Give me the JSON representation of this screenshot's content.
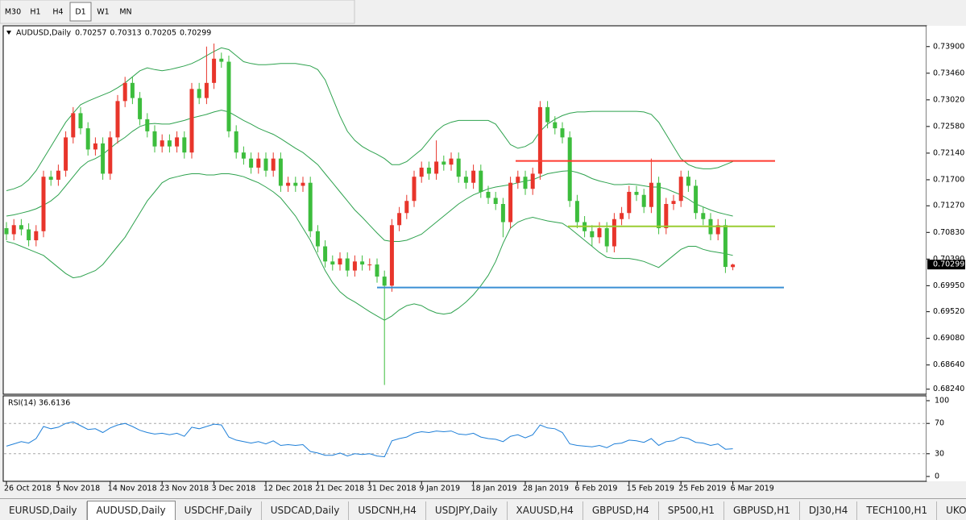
{
  "toolbar": {
    "timeframes": [
      {
        "label": "M30",
        "active": false
      },
      {
        "label": "H1",
        "active": false
      },
      {
        "label": "H4",
        "active": false
      },
      {
        "label": "D1",
        "active": true
      },
      {
        "label": "W1",
        "active": false
      },
      {
        "label": "MN",
        "active": false
      }
    ]
  },
  "tabs": [
    {
      "label": "EURUSD,Daily",
      "active": false
    },
    {
      "label": "AUDUSD,Daily",
      "active": true
    },
    {
      "label": "USDCHF,Daily",
      "active": false
    },
    {
      "label": "USDCAD,Daily",
      "active": false
    },
    {
      "label": "USDCNH,H4",
      "active": false
    },
    {
      "label": "USDJPY,Daily",
      "active": false
    },
    {
      "label": "XAUUSD,H4",
      "active": false
    },
    {
      "label": "GBPUSD,H4",
      "active": false
    },
    {
      "label": "SP500,H1",
      "active": false
    },
    {
      "label": "GBPUSD,H1",
      "active": false
    },
    {
      "label": "DJ30,H4",
      "active": false
    },
    {
      "label": "TECH100,H1",
      "active": false
    },
    {
      "label": "UKOil,",
      "active": false
    }
  ],
  "chart_data": [
    {
      "type": "candlestick",
      "title": "AUDUSD,Daily",
      "up_color": "#e8352b",
      "down_color": "#3dbd3d",
      "band_color": "#2ea24e",
      "categories": [
        "26 Oct 2018",
        null,
        null,
        null,
        null,
        null,
        null,
        "5 Nov 2018",
        null,
        null,
        null,
        null,
        null,
        null,
        "14 Nov 2018",
        null,
        null,
        null,
        null,
        null,
        null,
        "23 Nov 2018",
        null,
        null,
        null,
        null,
        null,
        null,
        "3 Dec 2018",
        null,
        null,
        null,
        null,
        null,
        null,
        "12 Dec 2018",
        null,
        null,
        null,
        null,
        null,
        null,
        "21 Dec 2018",
        null,
        null,
        null,
        null,
        null,
        null,
        "31 Dec 2018",
        null,
        null,
        null,
        null,
        null,
        null,
        "9 Jan 2019",
        null,
        null,
        null,
        null,
        null,
        null,
        "18 Jan 2019",
        null,
        null,
        null,
        null,
        null,
        null,
        "28 Jan 2019",
        null,
        null,
        null,
        null,
        null,
        null,
        "6 Feb 2019",
        null,
        null,
        null,
        null,
        null,
        null,
        "15 Feb 2019",
        null,
        null,
        null,
        null,
        null,
        null,
        "25 Feb 2019",
        null,
        null,
        null,
        null,
        null,
        null,
        "6 Mar 2019"
      ],
      "open": [
        0.709,
        0.708,
        0.7095,
        0.7088,
        0.707,
        0.7085,
        0.7175,
        0.717,
        0.7185,
        0.724,
        0.728,
        0.7255,
        0.722,
        0.723,
        0.718,
        0.724,
        0.73,
        0.733,
        0.7305,
        0.727,
        0.725,
        0.7225,
        0.7235,
        0.7225,
        0.724,
        0.7215,
        0.732,
        0.7305,
        0.733,
        0.737,
        0.7365,
        0.725,
        0.7215,
        0.7205,
        0.719,
        0.7205,
        0.7185,
        0.7205,
        0.716,
        0.7165,
        0.716,
        0.7165,
        0.7085,
        0.706,
        0.7035,
        0.703,
        0.704,
        0.702,
        0.7035,
        0.703,
        0.703,
        0.701,
        0.6995,
        0.7095,
        0.7115,
        0.7135,
        0.7175,
        0.719,
        0.718,
        0.72,
        0.7195,
        0.7205,
        0.7175,
        0.7165,
        0.7185,
        0.715,
        0.714,
        0.713,
        0.71,
        0.7165,
        0.7175,
        0.7155,
        0.718,
        0.729,
        0.7265,
        0.7255,
        0.724,
        0.7135,
        0.71,
        0.7085,
        0.7075,
        0.709,
        0.706,
        0.7105,
        0.7115,
        0.715,
        0.7145,
        0.7125,
        0.7165,
        0.709,
        0.713,
        0.7135,
        0.7175,
        0.716,
        0.7115,
        0.7105,
        0.708,
        0.7095,
        0.70257
      ],
      "high": [
        0.71,
        0.7105,
        0.7105,
        0.7098,
        0.7095,
        0.7185,
        0.7185,
        0.7195,
        0.725,
        0.729,
        0.729,
        0.7265,
        0.724,
        0.724,
        0.725,
        0.731,
        0.734,
        0.734,
        0.7315,
        0.728,
        0.726,
        0.7245,
        0.7245,
        0.725,
        0.725,
        0.733,
        0.733,
        0.739,
        0.7395,
        0.738,
        0.7375,
        0.726,
        0.7225,
        0.7215,
        0.7215,
        0.7215,
        0.7215,
        0.7215,
        0.7175,
        0.7175,
        0.7175,
        0.7175,
        0.7095,
        0.707,
        0.7045,
        0.705,
        0.705,
        0.7045,
        0.7045,
        0.704,
        0.704,
        0.702,
        0.7105,
        0.7125,
        0.7145,
        0.7185,
        0.72,
        0.72,
        0.7235,
        0.721,
        0.7215,
        0.7215,
        0.7185,
        0.7195,
        0.7195,
        0.716,
        0.715,
        0.714,
        0.7175,
        0.7185,
        0.7185,
        0.719,
        0.73,
        0.73,
        0.7275,
        0.7265,
        0.725,
        0.7145,
        0.711,
        0.7095,
        0.71,
        0.71,
        0.7115,
        0.7125,
        0.716,
        0.716,
        0.7155,
        0.7205,
        0.7175,
        0.714,
        0.7145,
        0.7185,
        0.7185,
        0.717,
        0.7125,
        0.7115,
        0.7105,
        0.7105,
        0.70313
      ],
      "low": [
        0.707,
        0.707,
        0.7078,
        0.706,
        0.706,
        0.7075,
        0.716,
        0.716,
        0.7175,
        0.723,
        0.7245,
        0.721,
        0.721,
        0.717,
        0.717,
        0.723,
        0.729,
        0.7295,
        0.726,
        0.724,
        0.7215,
        0.7215,
        0.7215,
        0.7215,
        0.7205,
        0.7205,
        0.7295,
        0.7295,
        0.732,
        0.7355,
        0.724,
        0.7205,
        0.7195,
        0.718,
        0.718,
        0.7175,
        0.7175,
        0.715,
        0.715,
        0.715,
        0.715,
        0.7075,
        0.705,
        0.7025,
        0.702,
        0.702,
        0.701,
        0.701,
        0.702,
        0.702,
        0.7,
        0.6831,
        0.6985,
        0.7085,
        0.7105,
        0.7125,
        0.7165,
        0.717,
        0.717,
        0.7185,
        0.7185,
        0.7165,
        0.7155,
        0.7155,
        0.714,
        0.713,
        0.712,
        0.7075,
        0.709,
        0.7155,
        0.7145,
        0.7145,
        0.717,
        0.7255,
        0.7245,
        0.723,
        0.7125,
        0.709,
        0.7075,
        0.706,
        0.7065,
        0.705,
        0.705,
        0.7095,
        0.7105,
        0.7135,
        0.7115,
        0.7115,
        0.708,
        0.708,
        0.712,
        0.7125,
        0.715,
        0.7105,
        0.7095,
        0.707,
        0.707,
        0.7016,
        0.70205
      ],
      "close": [
        0.708,
        0.7095,
        0.7088,
        0.707,
        0.7085,
        0.7175,
        0.717,
        0.7185,
        0.724,
        0.728,
        0.7255,
        0.722,
        0.723,
        0.718,
        0.724,
        0.73,
        0.733,
        0.7305,
        0.727,
        0.725,
        0.7225,
        0.7235,
        0.7225,
        0.724,
        0.7215,
        0.732,
        0.7305,
        0.733,
        0.737,
        0.7365,
        0.725,
        0.7215,
        0.7205,
        0.719,
        0.7205,
        0.7185,
        0.7205,
        0.716,
        0.7165,
        0.716,
        0.7165,
        0.7085,
        0.706,
        0.7035,
        0.703,
        0.704,
        0.702,
        0.7035,
        0.703,
        0.703,
        0.701,
        0.6995,
        0.7095,
        0.7115,
        0.7135,
        0.7175,
        0.719,
        0.718,
        0.72,
        0.7195,
        0.7205,
        0.7175,
        0.7165,
        0.7185,
        0.715,
        0.714,
        0.713,
        0.71,
        0.7165,
        0.7175,
        0.7155,
        0.718,
        0.729,
        0.7265,
        0.7255,
        0.724,
        0.7135,
        0.71,
        0.7085,
        0.7075,
        0.709,
        0.706,
        0.7105,
        0.7115,
        0.715,
        0.7145,
        0.7125,
        0.7165,
        0.709,
        0.713,
        0.7135,
        0.7175,
        0.716,
        0.7115,
        0.7105,
        0.708,
        0.7095,
        0.7026,
        0.70299
      ],
      "upper": [
        0.7152,
        0.7155,
        0.716,
        0.717,
        0.7185,
        0.7205,
        0.7225,
        0.7245,
        0.7265,
        0.728,
        0.7294,
        0.73,
        0.7305,
        0.731,
        0.7315,
        0.7322,
        0.733,
        0.734,
        0.735,
        0.7355,
        0.7352,
        0.735,
        0.7352,
        0.7355,
        0.7358,
        0.7362,
        0.7368,
        0.7375,
        0.7382,
        0.7388,
        0.7385,
        0.7375,
        0.7365,
        0.7362,
        0.736,
        0.736,
        0.7361,
        0.7362,
        0.7362,
        0.7362,
        0.736,
        0.7358,
        0.7352,
        0.7335,
        0.7305,
        0.7275,
        0.725,
        0.7235,
        0.7225,
        0.7218,
        0.7212,
        0.7205,
        0.7195,
        0.7195,
        0.72,
        0.721,
        0.722,
        0.7235,
        0.725,
        0.726,
        0.7265,
        0.7268,
        0.7268,
        0.7268,
        0.7268,
        0.7268,
        0.7262,
        0.7245,
        0.7228,
        0.7222,
        0.7225,
        0.7232,
        0.725,
        0.7262,
        0.727,
        0.7276,
        0.728,
        0.7282,
        0.7282,
        0.7283,
        0.7283,
        0.7283,
        0.7283,
        0.7283,
        0.7283,
        0.7283,
        0.7282,
        0.7278,
        0.7265,
        0.7245,
        0.7225,
        0.7205,
        0.7195,
        0.719,
        0.7188,
        0.7188,
        0.719,
        0.7195,
        0.72
      ],
      "middle": [
        0.711,
        0.7112,
        0.7115,
        0.7118,
        0.7122,
        0.7128,
        0.7135,
        0.7145,
        0.716,
        0.7175,
        0.719,
        0.72,
        0.7205,
        0.7212,
        0.7222,
        0.7232,
        0.724,
        0.725,
        0.7258,
        0.7262,
        0.7263,
        0.7262,
        0.7262,
        0.7265,
        0.7268,
        0.7272,
        0.7275,
        0.7278,
        0.7282,
        0.7285,
        0.7282,
        0.7275,
        0.7268,
        0.7262,
        0.7255,
        0.725,
        0.7245,
        0.7238,
        0.723,
        0.7222,
        0.7215,
        0.7205,
        0.7195,
        0.718,
        0.7165,
        0.715,
        0.7135,
        0.712,
        0.7108,
        0.7095,
        0.7082,
        0.707,
        0.7068,
        0.7068,
        0.707,
        0.7075,
        0.708,
        0.709,
        0.71,
        0.711,
        0.712,
        0.713,
        0.7138,
        0.7145,
        0.715,
        0.7155,
        0.7158,
        0.716,
        0.7162,
        0.7165,
        0.7168,
        0.717,
        0.7175,
        0.718,
        0.7182,
        0.7184,
        0.7185,
        0.7182,
        0.7178,
        0.7172,
        0.7168,
        0.7165,
        0.7162,
        0.7162,
        0.7163,
        0.7162,
        0.716,
        0.7158,
        0.7158,
        0.7155,
        0.715,
        0.7145,
        0.7138,
        0.713,
        0.7125,
        0.712,
        0.7116,
        0.7113,
        0.711
      ],
      "lower": [
        0.7068,
        0.7065,
        0.706,
        0.7055,
        0.705,
        0.7045,
        0.7035,
        0.7025,
        0.7015,
        0.7008,
        0.701,
        0.7015,
        0.702,
        0.703,
        0.7045,
        0.706,
        0.7075,
        0.7095,
        0.7115,
        0.7135,
        0.715,
        0.7165,
        0.7172,
        0.7175,
        0.7178,
        0.718,
        0.718,
        0.7178,
        0.7178,
        0.718,
        0.718,
        0.7178,
        0.7175,
        0.717,
        0.7165,
        0.7158,
        0.715,
        0.714,
        0.7125,
        0.711,
        0.709,
        0.707,
        0.7045,
        0.702,
        0.7,
        0.6985,
        0.6975,
        0.6968,
        0.696,
        0.6952,
        0.6945,
        0.6938,
        0.6945,
        0.6955,
        0.6962,
        0.6965,
        0.6962,
        0.6955,
        0.695,
        0.6948,
        0.695,
        0.6958,
        0.6968,
        0.698,
        0.6995,
        0.7012,
        0.7035,
        0.7065,
        0.709,
        0.71,
        0.7105,
        0.7108,
        0.7105,
        0.7102,
        0.71,
        0.7098,
        0.709,
        0.708,
        0.707,
        0.706,
        0.705,
        0.7042,
        0.704,
        0.704,
        0.704,
        0.7038,
        0.7035,
        0.703,
        0.7025,
        0.7035,
        0.7045,
        0.7055,
        0.706,
        0.706,
        0.7055,
        0.7052,
        0.705,
        0.7048,
        0.7045
      ],
      "levels": [
        {
          "value": 0.7201,
          "color": "#ff3b30"
        },
        {
          "value": 0.7093,
          "color": "#9acd32"
        },
        {
          "value": 0.6992,
          "color": "#3a8fd4"
        }
      ],
      "ylim": [
        0.6817,
        0.7423
      ],
      "yticks": [
        {
          "value": 0.739,
          "label": "0.73900"
        },
        {
          "value": 0.7346,
          "label": "0.73460"
        },
        {
          "value": 0.7302,
          "label": "0.73020"
        },
        {
          "value": 0.7258,
          "label": "0.72580"
        },
        {
          "value": 0.7214,
          "label": "0.72140"
        },
        {
          "value": 0.717,
          "label": "0.71700"
        },
        {
          "value": 0.7127,
          "label": "0.71270"
        },
        {
          "value": 0.7083,
          "label": "0.70830"
        },
        {
          "value": 0.7039,
          "label": "0.70390"
        },
        {
          "value": 0.6995,
          "label": "0.69950"
        },
        {
          "value": 0.6952,
          "label": "0.69520"
        },
        {
          "value": 0.6908,
          "label": "0.69080"
        },
        {
          "value": 0.6864,
          "label": "0.68640"
        },
        {
          "value": 0.6824,
          "label": "0.68240"
        }
      ]
    },
    {
      "type": "line",
      "title": "RSI(14) 36.6136",
      "color": "#1e7fd8",
      "values": [
        40,
        43,
        46,
        44,
        50,
        66,
        63,
        65,
        70,
        72,
        67,
        62,
        63,
        58,
        64,
        68,
        70,
        66,
        61,
        58,
        56,
        57,
        55,
        57,
        53,
        65,
        63,
        66,
        69,
        68,
        52,
        48,
        46,
        44,
        46,
        43,
        47,
        41,
        42,
        41,
        42,
        33,
        31,
        28,
        28,
        31,
        27,
        30,
        29,
        30,
        27,
        26,
        47,
        50,
        52,
        57,
        59,
        58,
        60,
        59,
        60,
        56,
        55,
        57,
        52,
        50,
        49,
        46,
        53,
        55,
        51,
        55,
        68,
        64,
        63,
        58,
        43,
        41,
        40,
        39,
        41,
        38,
        43,
        44,
        48,
        47,
        45,
        50,
        41,
        46,
        47,
        52,
        50,
        45,
        44,
        41,
        43,
        36,
        36.6136
      ],
      "ylim": [
        0,
        100
      ],
      "yticks": [
        100,
        70,
        30,
        0
      ]
    }
  ]
}
